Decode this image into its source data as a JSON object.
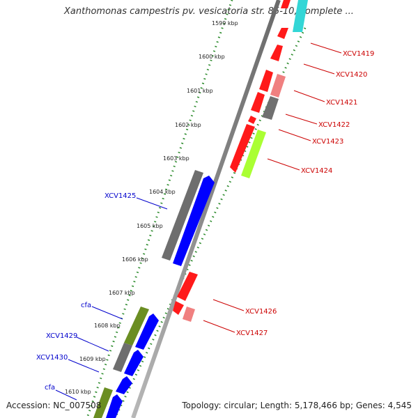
{
  "title": "Xanthomonas campestris pv. vesicatoria str. 85-10, complete ...",
  "footer": {
    "accession": "Accession: NC_007508",
    "summary": "Topology: circular; Length: 5,178,466 bp; Genes: 4,545"
  },
  "ticks": [
    "1599 kbp",
    "1600 kbp",
    "1601 kbp",
    "1602 kbp",
    "1603 kbp",
    "1604 kbp",
    "1605 kbp",
    "1606 kbp",
    "1607 kbp",
    "1608 kbp",
    "1609 kbp",
    "1610 kbp"
  ],
  "colors": {
    "forward_label": "#0000cc",
    "reverse_label": "#cc0000",
    "backbone": "#888888",
    "dotted_track": "#2a8a2a"
  },
  "forward_labels": [
    "XCV1425",
    "cfa",
    "XCV1429",
    "XCV1430",
    "cfa"
  ],
  "reverse_labels": [
    "XCV1419",
    "XCV1420",
    "XCV1421",
    "XCV1422",
    "XCV1423",
    "XCV1424",
    "XCV1426",
    "XCV1427"
  ]
}
